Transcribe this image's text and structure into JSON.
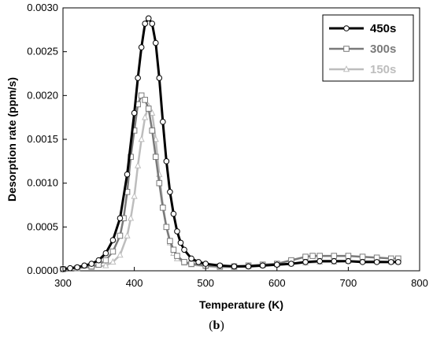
{
  "caption": "(b)",
  "chart_data": {
    "type": "line",
    "title": "",
    "xlabel": "Temperature (K)",
    "ylabel": "Desorption rate (ppm/s)",
    "xlim": [
      300,
      800
    ],
    "ylim": [
      0,
      0.003
    ],
    "x_ticks": [
      "300",
      "400",
      "500",
      "600",
      "700",
      "800"
    ],
    "y_ticks": [
      "0.0000",
      "0.0005",
      "0.0010",
      "0.0015",
      "0.0020",
      "0.0025",
      "0.0030"
    ],
    "legend_position": "top-right",
    "grid": false,
    "series": [
      {
        "name": "450s",
        "color": "#000000",
        "marker": "circle",
        "x": [
          300,
          310,
          320,
          330,
          340,
          350,
          360,
          370,
          380,
          390,
          400,
          405,
          410,
          415,
          420,
          425,
          430,
          435,
          440,
          445,
          450,
          455,
          460,
          465,
          470,
          480,
          490,
          500,
          520,
          540,
          560,
          580,
          600,
          620,
          640,
          660,
          680,
          700,
          720,
          740,
          760,
          770
        ],
        "y": [
          2e-05,
          3e-05,
          4e-05,
          6e-05,
          8e-05,
          0.00012,
          0.0002,
          0.00035,
          0.0006,
          0.0011,
          0.0018,
          0.0022,
          0.00255,
          0.00282,
          0.00288,
          0.00282,
          0.0026,
          0.0022,
          0.0017,
          0.00125,
          0.0009,
          0.00065,
          0.00045,
          0.00032,
          0.00024,
          0.00014,
          0.0001,
          8e-05,
          6e-05,
          5e-05,
          5e-05,
          6e-05,
          7e-05,
          8e-05,
          0.0001,
          0.00011,
          0.00011,
          0.00011,
          0.0001,
          0.0001,
          0.0001,
          0.0001
        ]
      },
      {
        "name": "300s",
        "color": "#7a7a7a",
        "marker": "square",
        "x": [
          300,
          320,
          340,
          350,
          360,
          370,
          380,
          385,
          390,
          395,
          400,
          405,
          410,
          415,
          420,
          425,
          430,
          435,
          440,
          445,
          450,
          455,
          460,
          470,
          480,
          500,
          520,
          540,
          560,
          580,
          600,
          620,
          640,
          650,
          660,
          680,
          700,
          720,
          740,
          760,
          770
        ],
        "y": [
          2e-05,
          3e-05,
          5e-05,
          7e-05,
          0.00012,
          0.00022,
          0.0004,
          0.0006,
          0.0009,
          0.0013,
          0.0016,
          0.0019,
          0.002,
          0.00195,
          0.00185,
          0.0016,
          0.0013,
          0.001,
          0.00072,
          0.0005,
          0.00034,
          0.00024,
          0.00017,
          0.0001,
          8e-05,
          6e-05,
          5e-05,
          5e-05,
          6e-05,
          7e-05,
          8e-05,
          0.00012,
          0.00016,
          0.00017,
          0.00017,
          0.00017,
          0.00017,
          0.00016,
          0.00015,
          0.00014,
          0.00014
        ]
      },
      {
        "name": "150s",
        "color": "#bdbdbd",
        "marker": "triangle",
        "x": [
          300,
          320,
          340,
          360,
          370,
          380,
          390,
          395,
          400,
          405,
          410,
          415,
          420,
          425,
          430,
          435,
          440,
          445,
          450,
          455,
          460,
          470,
          480,
          500,
          520,
          540,
          560,
          580,
          600,
          620,
          640,
          660,
          680,
          700,
          720,
          740,
          760,
          770
        ],
        "y": [
          2e-05,
          3e-05,
          4e-05,
          6e-05,
          0.0001,
          0.00018,
          0.0004,
          0.0006,
          0.00085,
          0.0012,
          0.0015,
          0.00175,
          0.00188,
          0.0018,
          0.0015,
          0.0011,
          0.00075,
          0.0005,
          0.00032,
          0.0002,
          0.00014,
          9e-05,
          7e-05,
          5e-05,
          4e-05,
          4e-05,
          5e-05,
          6e-05,
          7e-05,
          8e-05,
          9e-05,
          0.0001,
          0.0001,
          0.00011,
          0.00011,
          0.00011,
          0.0001,
          0.0001
        ]
      }
    ]
  }
}
